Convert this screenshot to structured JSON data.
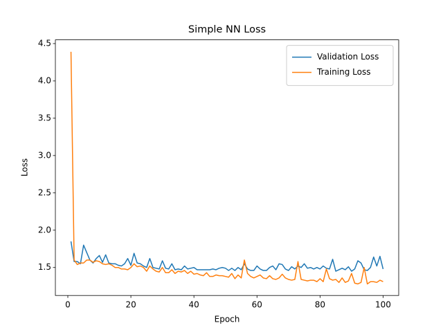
{
  "chart_data": {
    "type": "line",
    "title": "Simple NN Loss",
    "x_label": "Epoch",
    "y_label": "Loss",
    "x": [
      1,
      2,
      3,
      4,
      5,
      6,
      7,
      8,
      9,
      10,
      11,
      12,
      13,
      14,
      15,
      16,
      17,
      18,
      19,
      20,
      21,
      22,
      23,
      24,
      25,
      26,
      27,
      28,
      29,
      30,
      31,
      32,
      33,
      34,
      35,
      36,
      37,
      38,
      39,
      40,
      41,
      42,
      43,
      44,
      45,
      46,
      47,
      48,
      49,
      50,
      51,
      52,
      53,
      54,
      55,
      56,
      57,
      58,
      59,
      60,
      61,
      62,
      63,
      64,
      65,
      66,
      67,
      68,
      69,
      70,
      71,
      72,
      73,
      74,
      75,
      76,
      77,
      78,
      79,
      80,
      81,
      82,
      83,
      84,
      85,
      86,
      87,
      88,
      89,
      90,
      91,
      92,
      93,
      94,
      95,
      96,
      97,
      98,
      99,
      100
    ],
    "series": [
      {
        "name": "Validation Loss",
        "color": "#1f77b4",
        "values": [
          1.85,
          1.58,
          1.58,
          1.55,
          1.8,
          1.7,
          1.6,
          1.56,
          1.62,
          1.66,
          1.57,
          1.67,
          1.56,
          1.55,
          1.55,
          1.53,
          1.52,
          1.55,
          1.62,
          1.53,
          1.69,
          1.56,
          1.55,
          1.52,
          1.5,
          1.62,
          1.5,
          1.49,
          1.48,
          1.59,
          1.49,
          1.48,
          1.55,
          1.47,
          1.48,
          1.47,
          1.52,
          1.48,
          1.49,
          1.5,
          1.47,
          1.47,
          1.47,
          1.47,
          1.47,
          1.48,
          1.47,
          1.49,
          1.5,
          1.49,
          1.46,
          1.49,
          1.46,
          1.5,
          1.47,
          1.55,
          1.48,
          1.46,
          1.46,
          1.52,
          1.48,
          1.46,
          1.46,
          1.5,
          1.52,
          1.47,
          1.55,
          1.54,
          1.48,
          1.46,
          1.51,
          1.48,
          1.52,
          1.5,
          1.55,
          1.49,
          1.5,
          1.48,
          1.5,
          1.48,
          1.52,
          1.49,
          1.48,
          1.61,
          1.45,
          1.47,
          1.49,
          1.47,
          1.51,
          1.45,
          1.48,
          1.59,
          1.56,
          1.47,
          1.46,
          1.5,
          1.64,
          1.52,
          1.65,
          1.48
        ]
      },
      {
        "name": "Training Loss",
        "color": "#ff7f0e",
        "values": [
          4.39,
          1.6,
          1.54,
          1.56,
          1.56,
          1.6,
          1.6,
          1.57,
          1.59,
          1.58,
          1.55,
          1.54,
          1.55,
          1.53,
          1.5,
          1.5,
          1.48,
          1.48,
          1.47,
          1.5,
          1.55,
          1.51,
          1.52,
          1.5,
          1.45,
          1.52,
          1.48,
          1.45,
          1.44,
          1.5,
          1.43,
          1.43,
          1.47,
          1.42,
          1.45,
          1.44,
          1.46,
          1.42,
          1.45,
          1.41,
          1.42,
          1.4,
          1.39,
          1.43,
          1.38,
          1.38,
          1.4,
          1.39,
          1.39,
          1.38,
          1.37,
          1.42,
          1.35,
          1.4,
          1.36,
          1.6,
          1.42,
          1.38,
          1.36,
          1.38,
          1.4,
          1.36,
          1.35,
          1.39,
          1.35,
          1.34,
          1.36,
          1.41,
          1.36,
          1.34,
          1.33,
          1.34,
          1.58,
          1.34,
          1.33,
          1.32,
          1.33,
          1.33,
          1.31,
          1.35,
          1.31,
          1.48,
          1.35,
          1.33,
          1.34,
          1.3,
          1.36,
          1.3,
          1.32,
          1.42,
          1.29,
          1.28,
          1.3,
          1.5,
          1.28,
          1.31,
          1.31,
          1.3,
          1.33,
          1.31
        ]
      }
    ],
    "xlim": [
      -3.95,
      104.95
    ],
    "ylim": [
      1.125,
      4.55
    ],
    "xticks": [
      0,
      20,
      40,
      60,
      80,
      100
    ],
    "yticks": [
      1.5,
      {
        "value": 2,
        "label": "2.0"
      },
      2.5,
      {
        "value": 3,
        "label": "3.0"
      },
      3.5,
      {
        "value": 4,
        "label": "4.0"
      },
      4.5
    ],
    "legend": "upper right",
    "grid": false
  }
}
